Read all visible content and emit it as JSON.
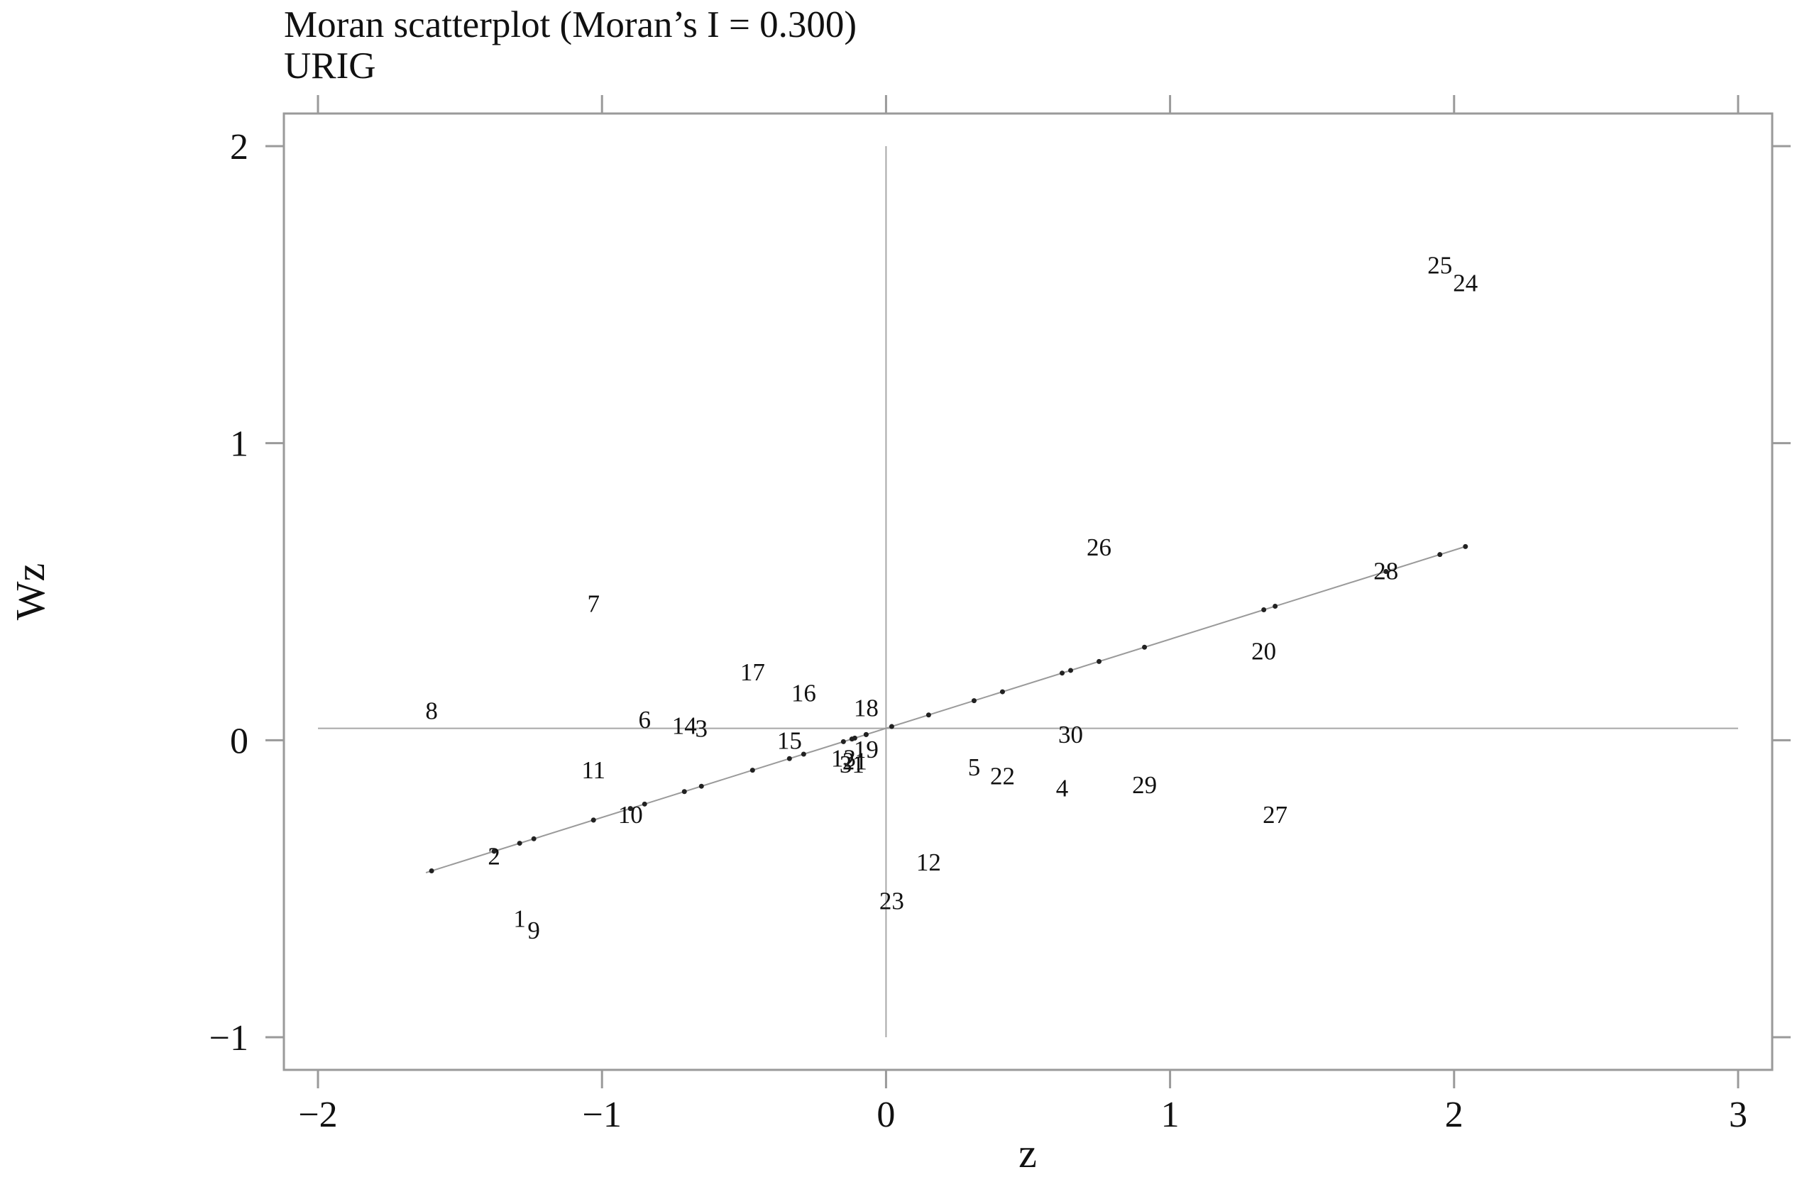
{
  "chart_data": {
    "type": "scatter",
    "title": "Moran scatterplot (Moran’s I = 0.300)",
    "subtitle": "URIG",
    "xlabel": "z",
    "ylabel": "Wz",
    "xlim": [
      -2.12,
      3.12
    ],
    "ylim": [
      -1.11,
      2.11
    ],
    "x_ticks": [
      -2,
      -1,
      0,
      1,
      2,
      3
    ],
    "x_tick_labels": [
      "−2",
      "−1",
      "0",
      "1",
      "2",
      "3"
    ],
    "y_ticks": [
      -1,
      0,
      1,
      2
    ],
    "y_tick_labels": [
      "−1",
      "0",
      "1",
      "2"
    ],
    "grid": false,
    "reference_lines": {
      "x": 0,
      "y": 0.04,
      "y_extent": [
        -1,
        2
      ],
      "x_extent": [
        -2,
        3
      ]
    },
    "regression_line": {
      "slope": 0.3,
      "intercept": 0.04,
      "x_range": [
        -1.62,
        2.04
      ]
    },
    "points": [
      {
        "label": "1",
        "x": -1.29,
        "y": -0.6
      },
      {
        "label": "9",
        "x": -1.24,
        "y": -0.64
      },
      {
        "label": "2",
        "x": -1.38,
        "y": -0.39
      },
      {
        "label": "3",
        "x": -0.65,
        "y": 0.04
      },
      {
        "label": "4",
        "x": 0.62,
        "y": -0.16
      },
      {
        "label": "5",
        "x": 0.31,
        "y": -0.09
      },
      {
        "label": "6",
        "x": -0.85,
        "y": 0.07
      },
      {
        "label": "7",
        "x": -1.03,
        "y": 0.46
      },
      {
        "label": "8",
        "x": -1.6,
        "y": 0.1
      },
      {
        "label": "10",
        "x": -0.9,
        "y": -0.25
      },
      {
        "label": "11",
        "x": -1.03,
        "y": -0.1
      },
      {
        "label": "12",
        "x": 0.15,
        "y": -0.41
      },
      {
        "label": "13",
        "x": -0.15,
        "y": -0.06
      },
      {
        "label": "14",
        "x": -0.71,
        "y": 0.05
      },
      {
        "label": "15",
        "x": -0.34,
        "y": 0.0
      },
      {
        "label": "16",
        "x": -0.29,
        "y": 0.16
      },
      {
        "label": "17",
        "x": -0.47,
        "y": 0.23
      },
      {
        "label": "18",
        "x": -0.07,
        "y": 0.11
      },
      {
        "label": "19",
        "x": -0.07,
        "y": -0.03
      },
      {
        "label": "20",
        "x": 1.33,
        "y": 0.3
      },
      {
        "label": "21",
        "x": -0.11,
        "y": -0.07
      },
      {
        "label": "22",
        "x": 0.41,
        "y": -0.12
      },
      {
        "label": "23",
        "x": 0.02,
        "y": -0.54
      },
      {
        "label": "24",
        "x": 2.04,
        "y": 1.54
      },
      {
        "label": "25",
        "x": 1.95,
        "y": 1.6
      },
      {
        "label": "26",
        "x": 0.75,
        "y": 0.65
      },
      {
        "label": "27",
        "x": 1.37,
        "y": -0.25
      },
      {
        "label": "28",
        "x": 1.76,
        "y": 0.57
      },
      {
        "label": "29",
        "x": 0.91,
        "y": -0.15
      },
      {
        "label": "30",
        "x": 0.65,
        "y": 0.02
      },
      {
        "label": "31",
        "x": -0.12,
        "y": -0.08
      }
    ]
  }
}
